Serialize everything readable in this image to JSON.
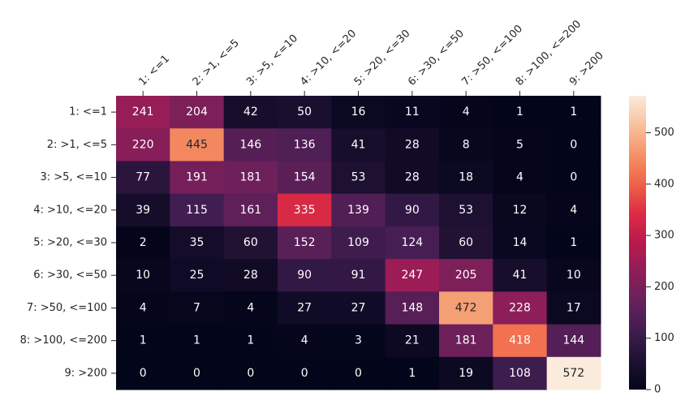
{
  "chart_data": {
    "type": "heatmap",
    "title": "",
    "xlabel": "",
    "ylabel": "",
    "x_categories": [
      "1: <=1",
      "2: >1, <=5",
      "3: >5, <=10",
      "4: >10, <=20",
      "5: >20, <=30",
      "6: >30, <=50",
      "7: >50, <=100",
      "8: >100, <=200",
      "9: >200"
    ],
    "y_categories": [
      "1: <=1",
      "2: >1, <=5",
      "3: >5, <=10",
      "4: >10, <=20",
      "5: >20, <=30",
      "6: >30, <=50",
      "7: >50, <=100",
      "8: >100, <=200",
      "9: >200"
    ],
    "values": [
      [
        241,
        204,
        42,
        50,
        16,
        11,
        4,
        1,
        1
      ],
      [
        220,
        445,
        146,
        136,
        41,
        28,
        8,
        5,
        0
      ],
      [
        77,
        191,
        181,
        154,
        53,
        28,
        18,
        4,
        0
      ],
      [
        39,
        115,
        161,
        335,
        139,
        90,
        53,
        12,
        4
      ],
      [
        2,
        35,
        60,
        152,
        109,
        124,
        60,
        14,
        1
      ],
      [
        10,
        25,
        28,
        90,
        91,
        247,
        205,
        41,
        10
      ],
      [
        4,
        7,
        4,
        27,
        27,
        148,
        472,
        228,
        17
      ],
      [
        1,
        1,
        1,
        4,
        3,
        21,
        181,
        418,
        144
      ],
      [
        0,
        0,
        0,
        0,
        0,
        1,
        19,
        108,
        572
      ]
    ],
    "x_tick_position": "top",
    "colormap": "rocket",
    "colorbar": {
      "range": [
        0,
        572
      ],
      "ticks": [
        0,
        100,
        200,
        300,
        400,
        500
      ]
    }
  }
}
